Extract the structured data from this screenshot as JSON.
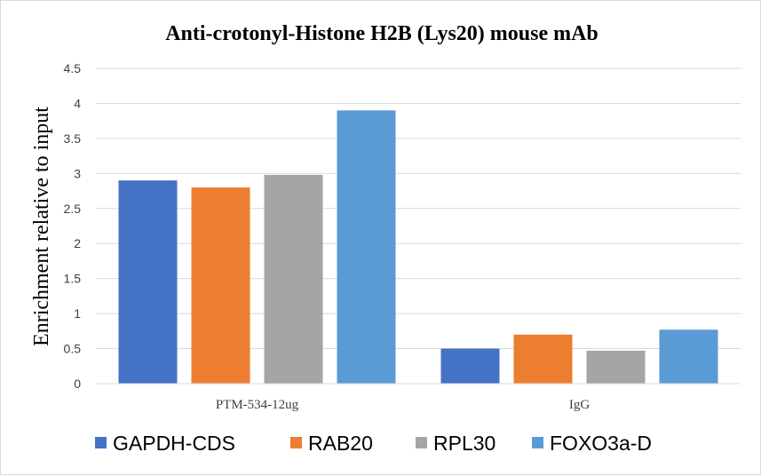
{
  "chart_data": {
    "type": "bar",
    "title": "Anti-crotonyl-Histone  H2B (Lys20) mouse mAb",
    "xlabel": "",
    "ylabel": "Enrichment  relative to input",
    "ylim": [
      0,
      4.5
    ],
    "yticks": [
      0,
      0.5,
      1,
      1.5,
      2,
      2.5,
      3,
      3.5,
      4,
      4.5
    ],
    "ytick_labels": [
      "0",
      "0.5",
      "1",
      "1.5",
      "2",
      "2.5",
      "3",
      "3.5",
      "4",
      "4.5"
    ],
    "grid": true,
    "legend_position": "bottom",
    "categories": [
      "PTM-534-12ug",
      "IgG"
    ],
    "series": [
      {
        "name": "GAPDH-CDS",
        "color": "#4472c4",
        "values": [
          2.9,
          0.5
        ]
      },
      {
        "name": "RAB20",
        "color": "#ed7d31",
        "values": [
          2.8,
          0.7
        ]
      },
      {
        "name": "RPL30",
        "color": "#a5a5a5",
        "values": [
          2.98,
          0.47
        ]
      },
      {
        "name": "FOXO3a-D",
        "color": "#5b9bd5",
        "values": [
          3.9,
          0.77
        ]
      }
    ]
  }
}
